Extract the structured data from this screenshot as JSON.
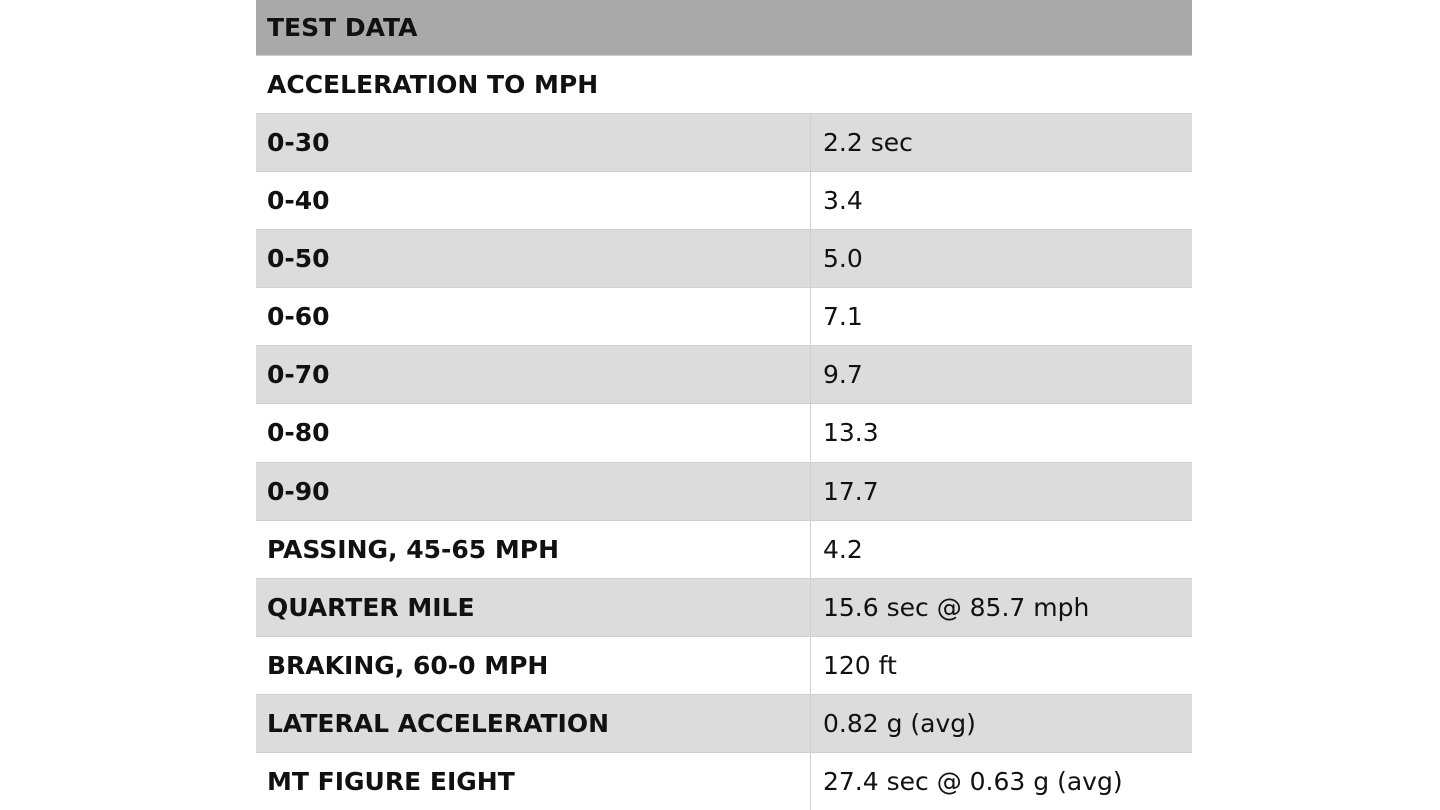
{
  "header": {
    "title": "TEST DATA"
  },
  "table": {
    "section": "ACCELERATION TO MPH",
    "rows": [
      [
        "0-30",
        "2.2 sec"
      ],
      [
        "0-40",
        "3.4"
      ],
      [
        "0-50",
        "5.0"
      ],
      [
        "0-60",
        "7.1"
      ],
      [
        "0-70",
        "9.7"
      ],
      [
        "0-80",
        "13.3"
      ],
      [
        "0-90",
        "17.7"
      ],
      [
        "PASSING, 45-65 MPH",
        "4.2"
      ],
      [
        "QUARTER MILE",
        "15.6 sec @ 85.7 mph"
      ],
      [
        "BRAKING, 60-0 MPH",
        "120 ft"
      ],
      [
        "LATERAL ACCELERATION",
        "0.82 g (avg)"
      ],
      [
        "MT FIGURE EIGHT",
        "27.4 sec @ 0.63 g (avg)"
      ]
    ]
  }
}
